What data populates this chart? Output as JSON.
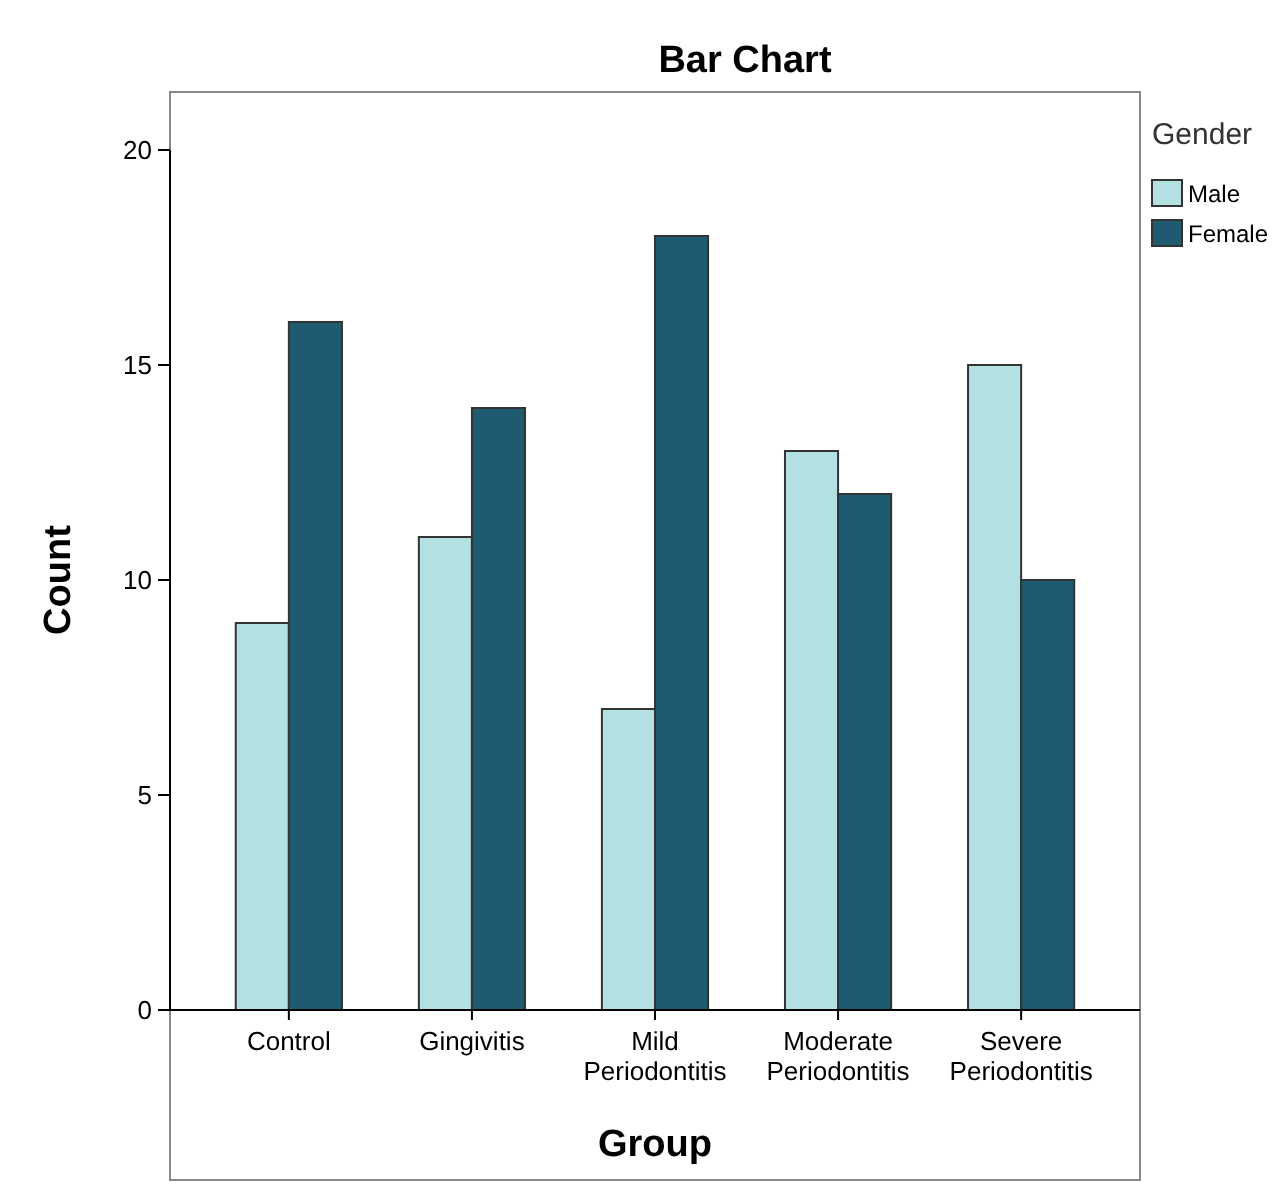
{
  "chart_data": {
    "type": "bar",
    "title": "Bar Chart",
    "xlabel": "Group",
    "ylabel": "Count",
    "legend_title": "Gender",
    "legend": "right",
    "categories": [
      "Control",
      "Gingivitis",
      "Mild Periodontitis",
      "Moderate Periodontitis",
      "Severe Periodontitis"
    ],
    "series": [
      {
        "name": "Male",
        "color": "#b3e0e2",
        "values": [
          9,
          11,
          7,
          13,
          15
        ]
      },
      {
        "name": "Female",
        "color": "#1e5b70",
        "values": [
          16,
          14,
          18,
          12,
          10
        ]
      }
    ],
    "ylim": [
      0,
      20
    ],
    "yticks": [
      0,
      5,
      10,
      15,
      20
    ],
    "grid": false
  }
}
